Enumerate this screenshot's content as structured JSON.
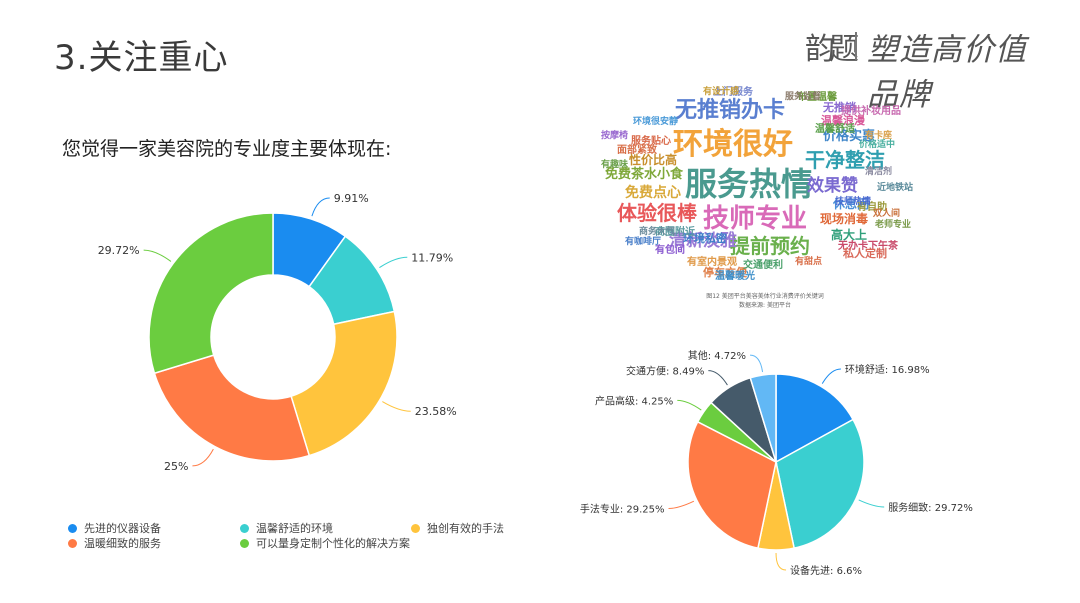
{
  "page_title": "3.关注重心",
  "brand": {
    "seal": "韵题",
    "slogan": "塑造高价值品牌"
  },
  "question": "您觉得一家美容院的专业度主要体现在:",
  "colors": [
    "#1a8cf0",
    "#3acfd0",
    "#ffc43d",
    "#ff7a45",
    "#6bcd3f",
    "#455a6a",
    "#62b8f5"
  ],
  "chart_data": [
    {
      "type": "pie",
      "variant": "donut",
      "categories": [
        "先进的仪器设备",
        "温馨舒适的环境",
        "独创有效的手法",
        "温暖细致的服务",
        "可以量身定制个性化的解决方案"
      ],
      "values": [
        9.91,
        11.79,
        23.58,
        25,
        29.72
      ],
      "value_labels": [
        "9.91%",
        "11.79%",
        "23.58%",
        "25%",
        "29.72%"
      ],
      "legend_position": "bottom"
    },
    {
      "type": "pie",
      "categories": [
        "环境舒适",
        "服务细致",
        "设备先进",
        "手法专业",
        "产品高级",
        "交通方便",
        "其他"
      ],
      "values": [
        16.98,
        29.72,
        6.6,
        29.25,
        4.25,
        8.49,
        4.72
      ],
      "value_labels": [
        "环境舒适: 16.98%",
        "服务细致: 29.72%",
        "设备先进: 6.6%",
        "手法专业: 29.25%",
        "产品高级: 4.25%",
        "交通方便: 8.49%",
        "其他: 4.72%"
      ]
    }
  ],
  "word_cloud": {
    "words": [
      {
        "text": "环境很好",
        "color": "#f2a33a"
      },
      {
        "text": "服务热情",
        "color": "#4a9a8f"
      },
      {
        "text": "技师专业",
        "color": "#d96ab8"
      },
      {
        "text": "无推销办卡",
        "color": "#5a7fd0"
      },
      {
        "text": "体验很棒",
        "color": "#e8585a"
      },
      {
        "text": "提前预约",
        "color": "#6ab04c"
      },
      {
        "text": "干净整洁",
        "color": "#2f9fb0"
      },
      {
        "text": "效果赞",
        "color": "#7a6ad0"
      },
      {
        "text": "清新淡雅",
        "color": "#9a7bd6"
      },
      {
        "text": "免费茶水小食",
        "color": "#7fa83a"
      },
      {
        "text": "性价比高",
        "color": "#c88f2d"
      },
      {
        "text": "价格实惠",
        "color": "#3f86c9"
      },
      {
        "text": "免费点心",
        "color": "#d9a93a"
      },
      {
        "text": "休息间",
        "color": "#4a8fd8"
      },
      {
        "text": "现场消毒",
        "color": "#e06a3a"
      },
      {
        "text": "高大上",
        "color": "#2f9f7a"
      },
      {
        "text": "无办卡下午茶",
        "color": "#c94a6a"
      },
      {
        "text": "温馨浪漫",
        "color": "#d95a9a"
      },
      {
        "text": "无推销",
        "color": "#8a6ad0"
      },
      {
        "text": "布置温馨",
        "color": "#6a9a3a"
      },
      {
        "text": "提供补妆用品",
        "color": "#c86ab0"
      },
      {
        "text": "服务贴心",
        "color": "#d96a4a"
      },
      {
        "text": "环境私密",
        "color": "#3f7fc9"
      },
      {
        "text": "商圈附近",
        "color": "#5a9aa0"
      },
      {
        "text": "停车方便",
        "color": "#e0804a"
      },
      {
        "text": "交通便利",
        "color": "#4aa06a"
      },
      {
        "text": "上门服务",
        "color": "#7a8ad0"
      },
      {
        "text": "服务监督",
        "color": "#8a7a6a"
      },
      {
        "text": "有设计感",
        "color": "#c9a03a"
      },
      {
        "text": "按摩椅",
        "color": "#9a6ad0"
      },
      {
        "text": "环境很安静",
        "color": "#4a9ad8"
      },
      {
        "text": "面部紧致",
        "color": "#d9704a"
      },
      {
        "text": "有趣味",
        "color": "#6aa04a"
      },
      {
        "text": "有卡座",
        "color": "#d9a04a"
      },
      {
        "text": "价格适中",
        "color": "#4ab0a0"
      },
      {
        "text": "温馨舒适",
        "color": "#5aa04a"
      },
      {
        "text": "温馨暖光",
        "color": "#3f8fc9"
      },
      {
        "text": "有包间",
        "color": "#8a5ad0"
      },
      {
        "text": "有室内景观",
        "color": "#e09a4a"
      },
      {
        "text": "有咖啡厅",
        "color": "#4a7fc9"
      },
      {
        "text": "商务大气",
        "color": "#6a8a9a"
      },
      {
        "text": "有自助",
        "color": "#9a9a3a"
      },
      {
        "text": "私人定制",
        "color": "#d96a5a"
      },
      {
        "text": "技师热情",
        "color": "#4a6ad0"
      },
      {
        "text": "双人间",
        "color": "#c9703a"
      },
      {
        "text": "近地铁站",
        "color": "#5a8a9a"
      },
      {
        "text": "老师专业",
        "color": "#7a9a4a"
      },
      {
        "text": "清洁剂",
        "color": "#8a8aa0"
      },
      {
        "text": "有甜点",
        "color": "#d9704a"
      }
    ],
    "caption_lines": [
      "图12 美团平台美容美体行业消费评价关键词",
      "数据来源: 美团平台"
    ]
  },
  "legend": {
    "items": [
      "先进的仪器设备",
      "温馨舒适的环境",
      "独创有效的手法",
      "温暖细致的服务",
      "可以量身定制个性化的解决方案"
    ]
  }
}
